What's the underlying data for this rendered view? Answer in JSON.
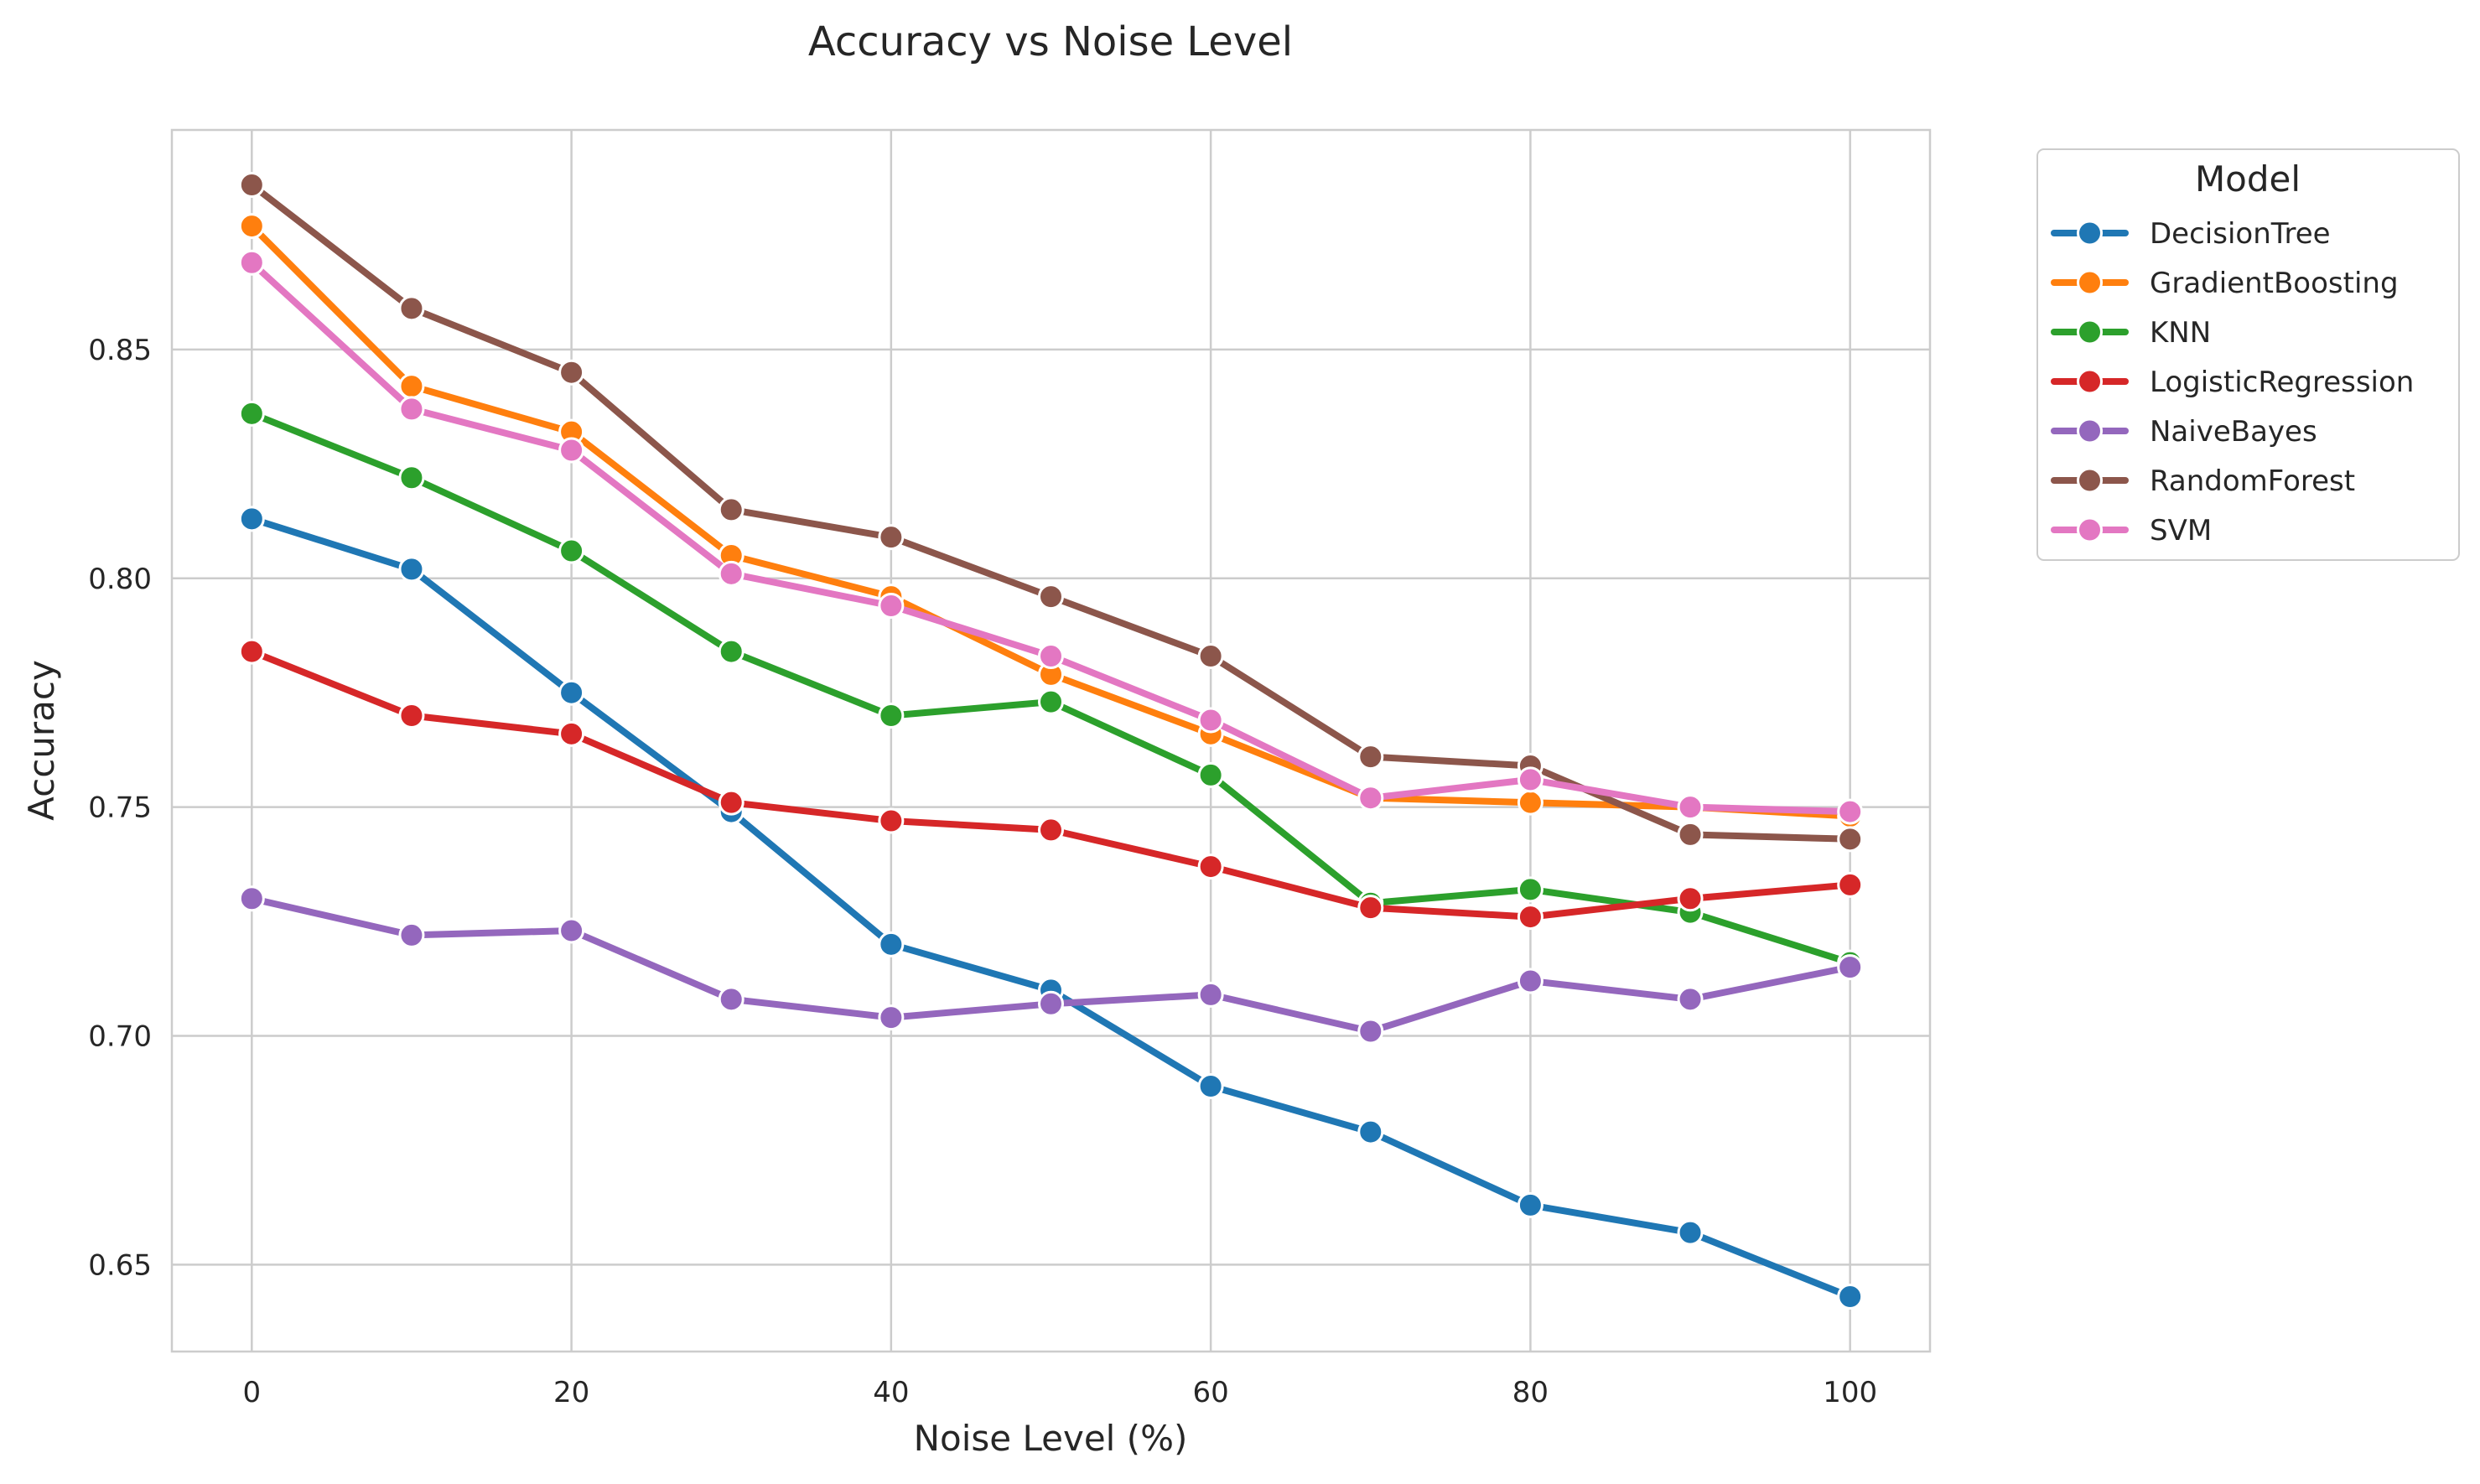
{
  "chart_data": {
    "type": "line",
    "title": "Accuracy vs Noise Level",
    "xlabel": "Noise Level (%)",
    "ylabel": "Accuracy",
    "x": [
      0,
      10,
      20,
      30,
      40,
      50,
      60,
      70,
      80,
      90,
      100
    ],
    "xlim": [
      -5,
      105
    ],
    "ylim": [
      0.631,
      0.898
    ],
    "xticks": [
      0,
      20,
      40,
      60,
      80,
      100
    ],
    "xtick_labels": [
      "0",
      "20",
      "40",
      "60",
      "80",
      "100"
    ],
    "yticks": [
      0.65,
      0.7,
      0.75,
      0.8,
      0.85
    ],
    "ytick_labels": [
      "0.65",
      "0.70",
      "0.75",
      "0.80",
      "0.85"
    ],
    "grid": true,
    "legend": {
      "title": "Model",
      "placement": "outside top-right"
    },
    "series": [
      {
        "name": "DecisionTree",
        "color": "#1f77b4",
        "values": [
          0.813,
          0.802,
          0.775,
          0.749,
          0.72,
          0.71,
          0.689,
          0.679,
          0.663,
          0.657,
          0.643
        ]
      },
      {
        "name": "GradientBoosting",
        "color": "#ff7f0e",
        "values": [
          0.877,
          0.842,
          0.832,
          0.805,
          0.796,
          0.779,
          0.766,
          0.752,
          0.751,
          0.75,
          0.748
        ]
      },
      {
        "name": "KNN",
        "color": "#2ca02c",
        "values": [
          0.836,
          0.822,
          0.806,
          0.784,
          0.77,
          0.773,
          0.757,
          0.729,
          0.732,
          0.727,
          0.716
        ]
      },
      {
        "name": "LogisticRegression",
        "color": "#d62728",
        "values": [
          0.784,
          0.77,
          0.766,
          0.751,
          0.747,
          0.745,
          0.737,
          0.728,
          0.726,
          0.73,
          0.733
        ]
      },
      {
        "name": "NaiveBayes",
        "color": "#9467bd",
        "values": [
          0.73,
          0.722,
          0.723,
          0.708,
          0.704,
          0.707,
          0.709,
          0.701,
          0.712,
          0.708,
          0.715
        ]
      },
      {
        "name": "RandomForest",
        "color": "#8c564b",
        "values": [
          0.886,
          0.859,
          0.845,
          0.815,
          0.809,
          0.796,
          0.783,
          0.761,
          0.759,
          0.744,
          0.743
        ]
      },
      {
        "name": "SVM",
        "color": "#e377c2",
        "values": [
          0.869,
          0.837,
          0.828,
          0.801,
          0.794,
          0.783,
          0.769,
          0.752,
          0.756,
          0.75,
          0.749
        ]
      }
    ]
  }
}
